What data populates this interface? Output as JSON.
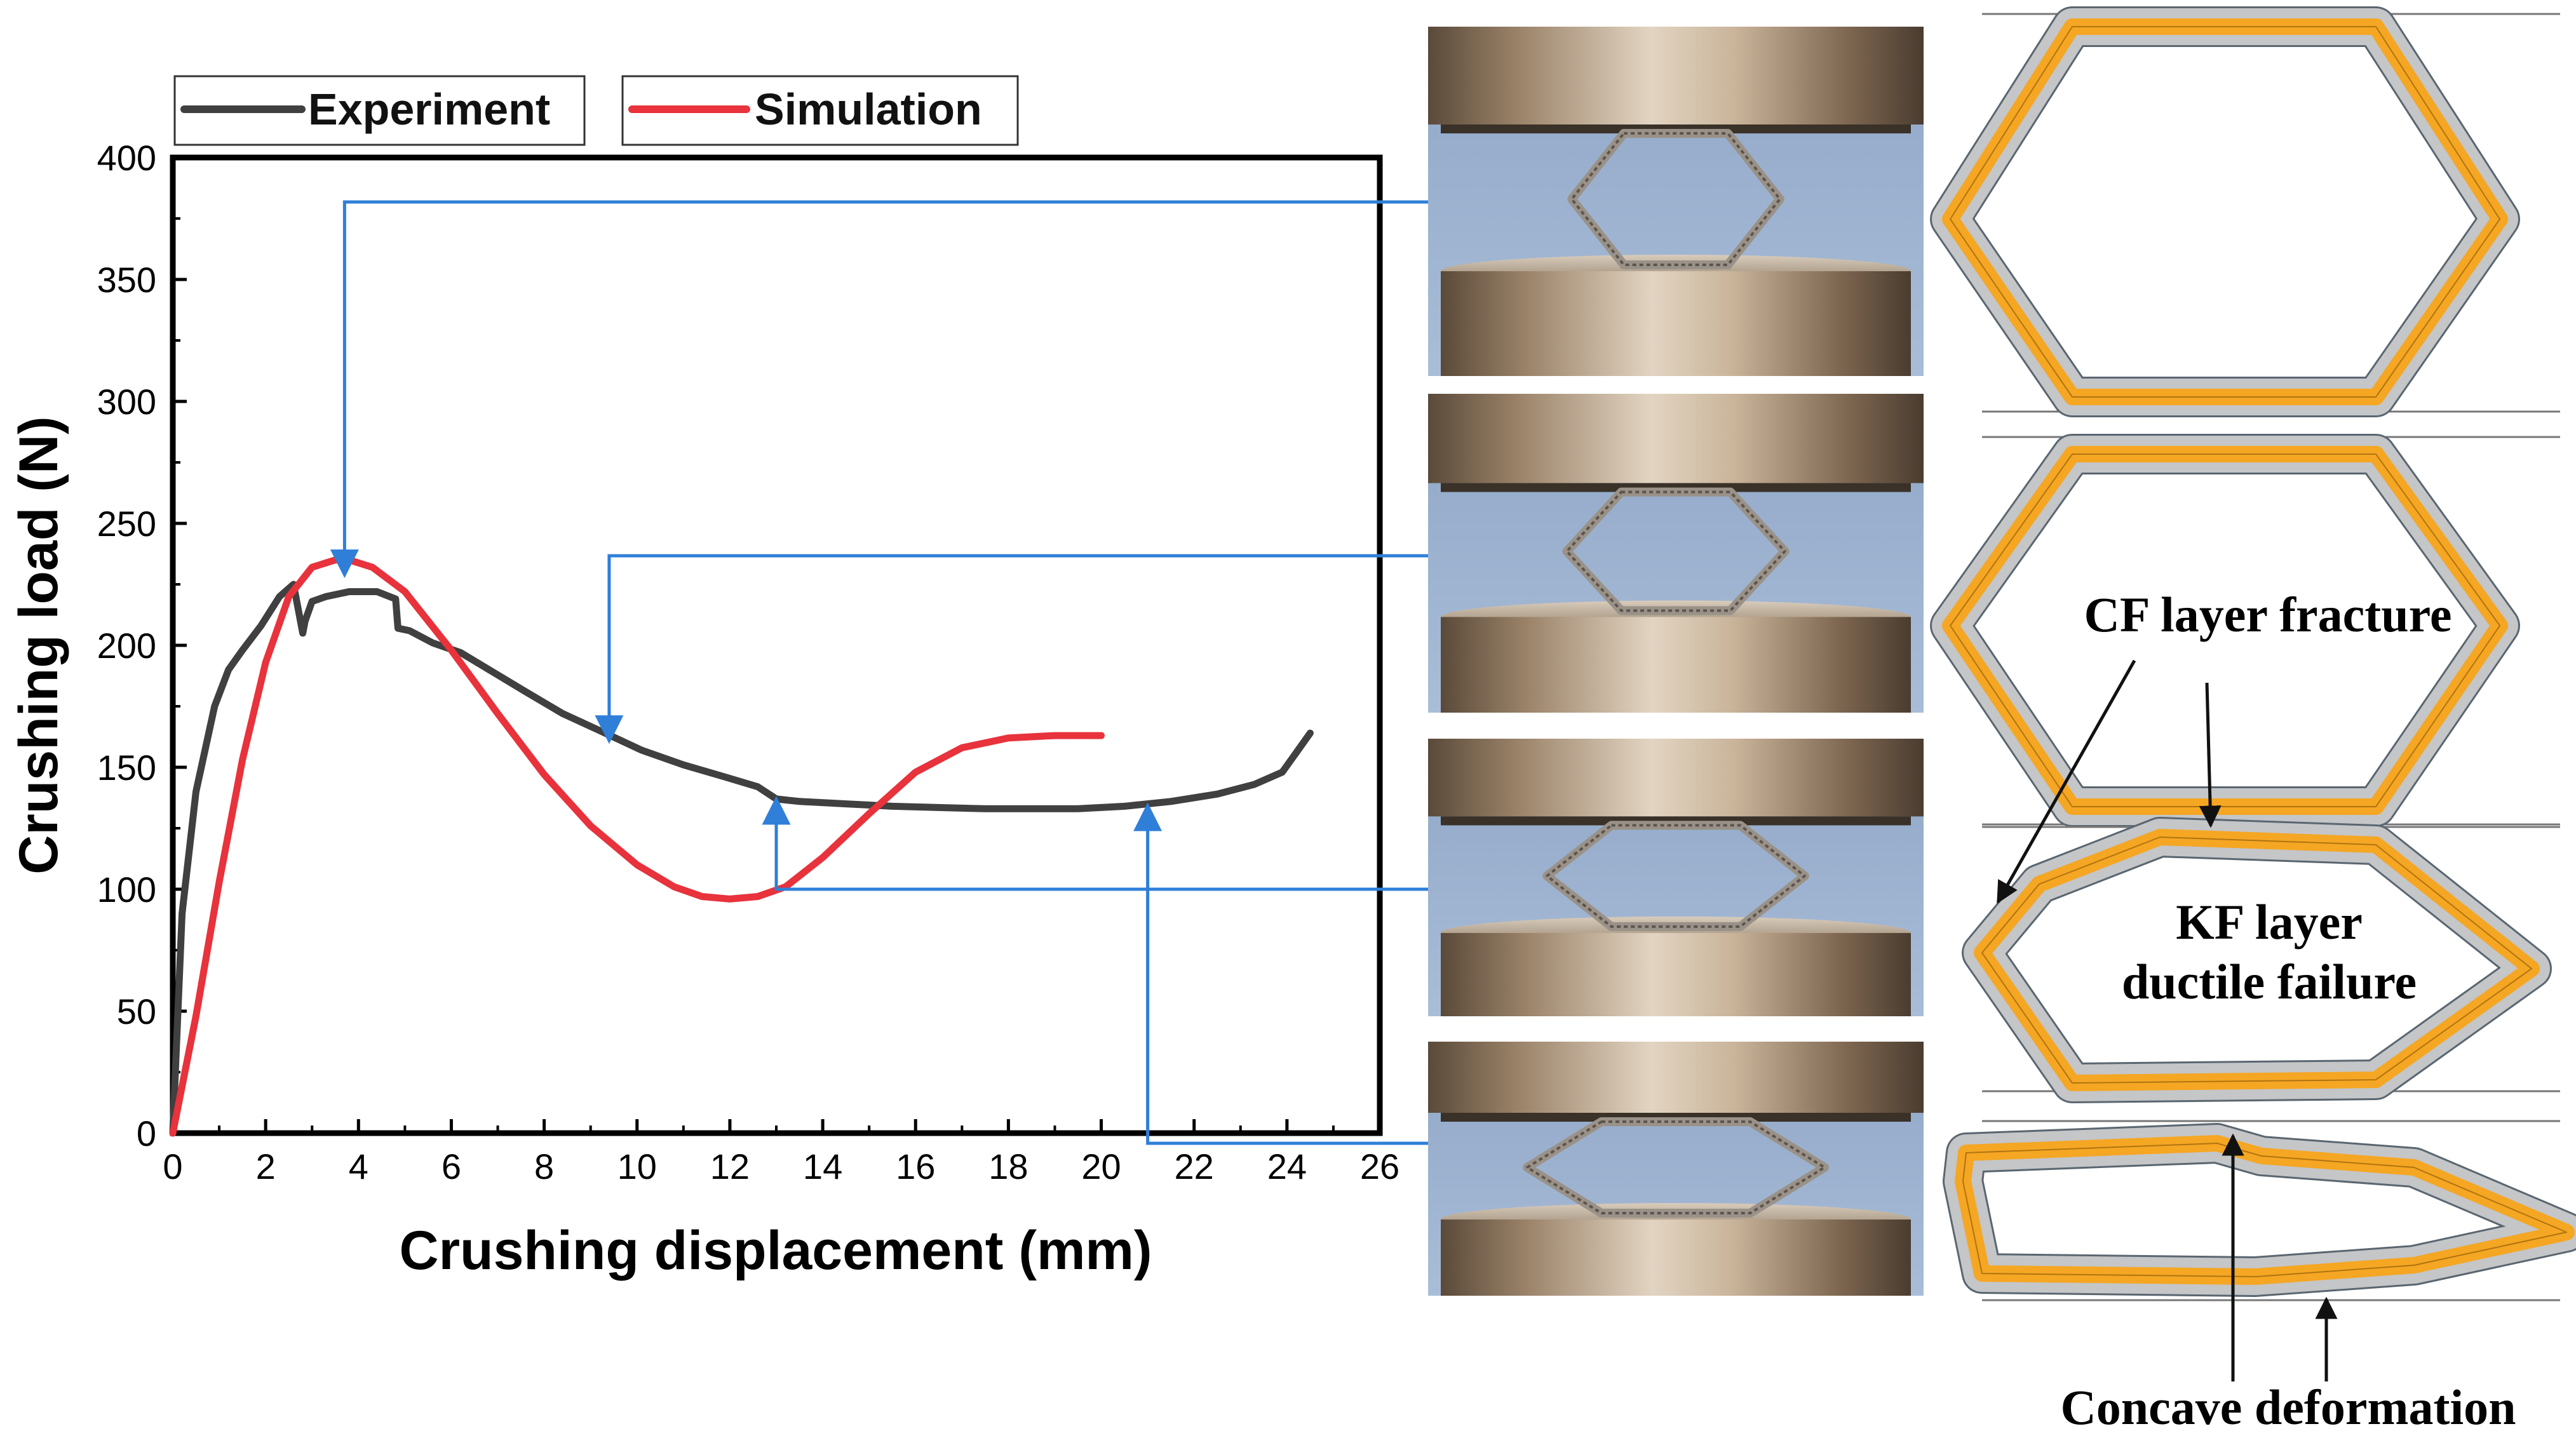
{
  "chart_data": {
    "type": "line",
    "xlabel": "Crushing displacement (mm)",
    "ylabel": "Crushing load (N)",
    "xlim": [
      0,
      26
    ],
    "ylim": [
      0,
      400
    ],
    "xticks": [
      0,
      2,
      4,
      6,
      8,
      10,
      12,
      14,
      16,
      18,
      20,
      22,
      24,
      26
    ],
    "yticks": [
      0,
      50,
      100,
      150,
      200,
      250,
      300,
      350,
      400
    ],
    "legend": {
      "placement": "top-outside"
    },
    "series": [
      {
        "name": "Experiment",
        "color": "#404040",
        "x": [
          0,
          0.2,
          0.5,
          0.9,
          1.2,
          1.5,
          1.9,
          2.3,
          2.6,
          2.8,
          2.85,
          3.0,
          3.3,
          3.8,
          4.4,
          4.8,
          4.85,
          5.1,
          5.6,
          6.2,
          6.9,
          7.6,
          8.4,
          9.2,
          10.1,
          11.0,
          11.9,
          12.6,
          13.0,
          13.5,
          14.5,
          15.5,
          16.5,
          17.5,
          18.5,
          19.5,
          20.5,
          21.5,
          22.5,
          23.3,
          23.9,
          24.2,
          24.5
        ],
        "y": [
          0,
          90,
          140,
          175,
          190,
          198,
          208,
          220,
          225,
          205,
          210,
          218,
          220,
          222,
          222,
          219,
          207,
          206,
          201,
          197,
          189,
          181,
          172,
          165,
          157,
          151,
          146,
          142,
          137,
          136,
          135,
          134,
          133.5,
          133,
          133,
          133,
          134,
          136,
          139,
          143,
          148,
          156,
          164
        ]
      },
      {
        "name": "Simulation",
        "color": "#e8323c",
        "x": [
          0,
          0.5,
          1.0,
          1.5,
          2.0,
          2.5,
          3.0,
          3.5,
          3.8,
          4.3,
          5.0,
          6.0,
          7.0,
          8.0,
          9.0,
          10.0,
          10.8,
          11.4,
          12.0,
          12.6,
          13.2,
          14.0,
          15.0,
          16.0,
          17.0,
          18.0,
          19.0,
          20.0
        ],
        "y": [
          0,
          48,
          103,
          153,
          193,
          220,
          232,
          235,
          235,
          232,
          222,
          198,
          172,
          147,
          126,
          110,
          101,
          97,
          96,
          97,
          101,
          113,
          131,
          148,
          158,
          162,
          163,
          163
        ]
      }
    ],
    "annotations": [
      {
        "x": 3.7,
        "y": 235,
        "photo": 1
      },
      {
        "x": 9.4,
        "y": 167,
        "photo": 2
      },
      {
        "x": 13.0,
        "y": 100,
        "photo": 3
      },
      {
        "x": 21.0,
        "y": 138,
        "photo": 4
      }
    ]
  },
  "diagram": {
    "labels": {
      "cf_fracture": "CF layer fracture",
      "kf_line1": "KF layer",
      "kf_line2": "ductile failure",
      "concave": "Concave deformation"
    }
  },
  "colors": {
    "annotation_blue": "#2f7fd8",
    "layer_orange": "#f5a623",
    "layer_grey": "#c4c6c8",
    "platen": "#b89a78"
  }
}
